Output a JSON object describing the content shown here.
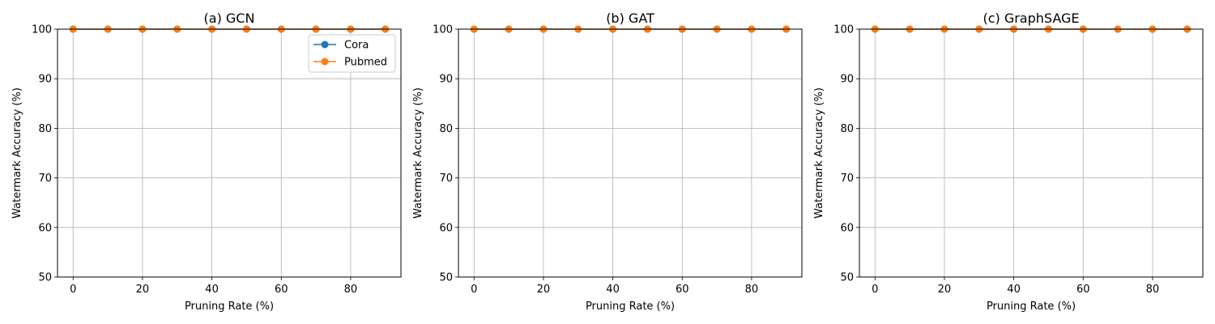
{
  "chart_data": [
    {
      "type": "line",
      "title": "(a) GCN",
      "xlabel": "Pruning Rate (%)",
      "ylabel": "Watermark Accuracy (%)",
      "xlim": [
        -4.5,
        94.5
      ],
      "ylim": [
        50,
        100
      ],
      "xticks": [
        0,
        20,
        40,
        60,
        80
      ],
      "yticks": [
        50,
        60,
        70,
        80,
        90,
        100
      ],
      "grid": true,
      "legend": "top-right",
      "show_legend": true,
      "x": [
        0,
        10,
        20,
        30,
        40,
        50,
        60,
        70,
        80,
        90
      ],
      "series": [
        {
          "name": "Cora",
          "color": "#1f77b4",
          "values": [
            100,
            100,
            100,
            100,
            100,
            100,
            100,
            100,
            100,
            100
          ]
        },
        {
          "name": "Pubmed",
          "color": "#ff7f0e",
          "values": [
            100,
            100,
            100,
            100,
            100,
            100,
            100,
            100,
            100,
            100
          ]
        }
      ]
    },
    {
      "type": "line",
      "title": "(b) GAT",
      "xlabel": "Pruning Rate (%)",
      "ylabel": "Watermark Accuracy (%)",
      "xlim": [
        -4.5,
        94.5
      ],
      "ylim": [
        50,
        100
      ],
      "xticks": [
        0,
        20,
        40,
        60,
        80
      ],
      "yticks": [
        50,
        60,
        70,
        80,
        90,
        100
      ],
      "grid": true,
      "show_legend": false,
      "x": [
        0,
        10,
        20,
        30,
        40,
        50,
        60,
        70,
        80,
        90
      ],
      "series": [
        {
          "name": "Cora",
          "color": "#1f77b4",
          "values": [
            100,
            100,
            100,
            100,
            100,
            100,
            100,
            100,
            100,
            100
          ]
        },
        {
          "name": "Pubmed",
          "color": "#ff7f0e",
          "values": [
            100,
            100,
            100,
            100,
            100,
            100,
            100,
            100,
            100,
            100
          ]
        }
      ]
    },
    {
      "type": "line",
      "title": "(c) GraphSAGE",
      "xlabel": "Pruning Rate (%)",
      "ylabel": "Watermark Accuracy (%)",
      "xlim": [
        -4.5,
        94.5
      ],
      "ylim": [
        50,
        100
      ],
      "xticks": [
        0,
        20,
        40,
        60,
        80
      ],
      "yticks": [
        50,
        60,
        70,
        80,
        90,
        100
      ],
      "grid": true,
      "show_legend": false,
      "x": [
        0,
        10,
        20,
        30,
        40,
        50,
        60,
        70,
        80,
        90
      ],
      "series": [
        {
          "name": "Cora",
          "color": "#1f77b4",
          "values": [
            100,
            100,
            100,
            100,
            100,
            100,
            100,
            100,
            100,
            100
          ]
        },
        {
          "name": "Pubmed",
          "color": "#ff7f0e",
          "values": [
            100,
            100,
            100,
            100,
            100,
            100,
            100,
            100,
            100,
            100
          ]
        }
      ]
    }
  ]
}
